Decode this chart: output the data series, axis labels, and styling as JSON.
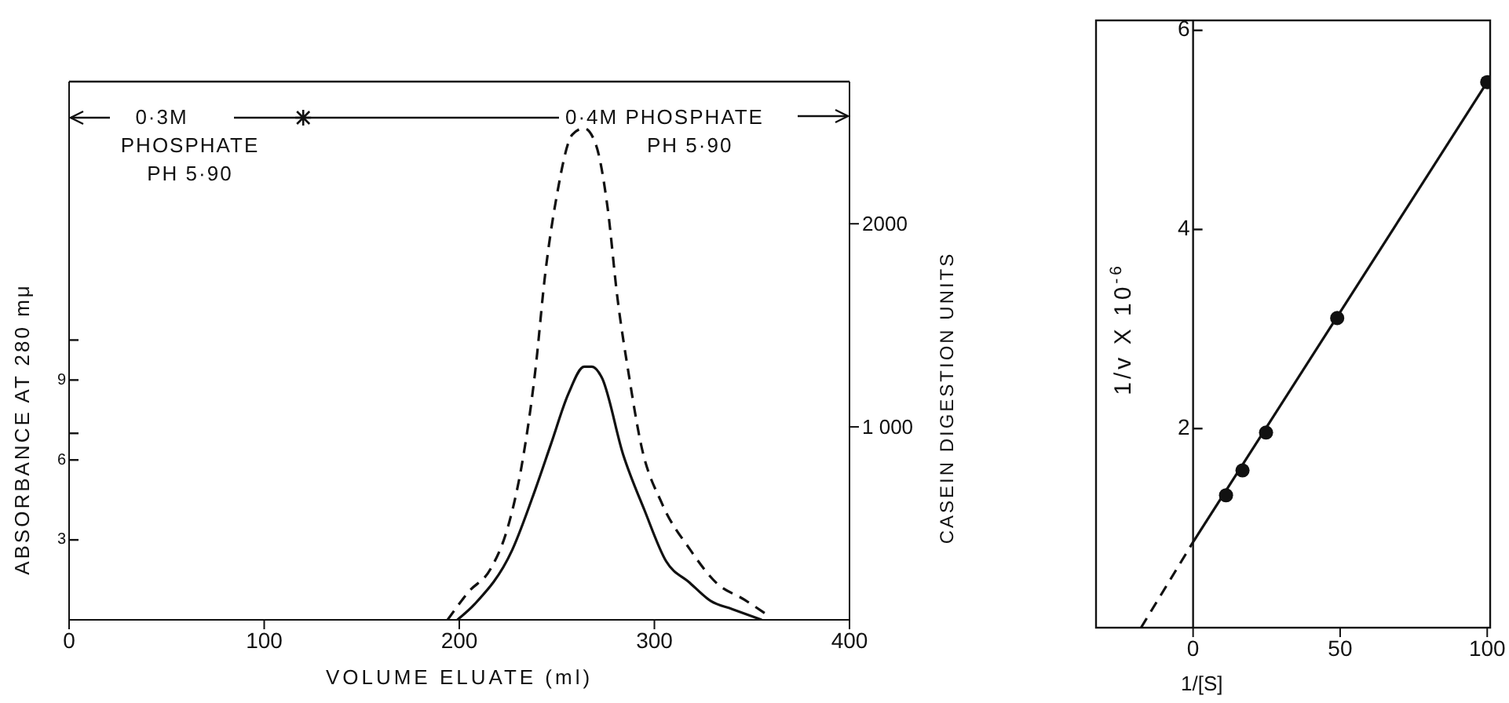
{
  "chart_data": [
    {
      "type": "line",
      "xlabel": "VOLUME ELUATE (ml)",
      "ylabel": "ABSORBANCE AT 280 mμ",
      "y2label": "CASEIN DIGESTION UNITS",
      "annotations": [
        "0·3M PHOSPHATE PH 5·90",
        "0·4M PHOSPHATE PH 5·90"
      ],
      "xlim": [
        0,
        400
      ],
      "xticks": [
        0,
        100,
        200,
        300,
        400
      ],
      "ylim": [
        0,
        20.2
      ],
      "yticks": [
        3,
        6,
        {
          "value": 7,
          "label": null
        },
        9,
        {
          "value": 10.5,
          "label": null
        }
      ],
      "y2lim": [
        50,
        2700
      ],
      "y2ticks": [
        {
          "value": 1000,
          "label": "1 000"
        },
        2000
      ],
      "series": [
        {
          "color": "#111111",
          "line_style": "solid",
          "x": [
            199,
            208,
            227,
            239,
            247,
            256,
            264,
            268,
            273,
            284,
            295,
            306,
            318,
            329,
            340,
            355
          ],
          "values": [
            0,
            0.6,
            2.6,
            4.9,
            6.6,
            8.5,
            9.5,
            9.5,
            9.1,
            6.2,
            4.1,
            2.2,
            1.4,
            0.7,
            0.4,
            0
          ]
        },
        {
          "color": "#111111",
          "line_style": "dashed",
          "axis": "y2",
          "x": [
            194,
            205,
            216,
            225,
            232,
            239,
            244,
            250,
            258,
            264,
            270,
            276,
            281,
            287,
            293,
            304,
            318,
            332,
            346,
            357
          ],
          "values": [
            50,
            190,
            300,
            510,
            810,
            1280,
            1750,
            2140,
            2440,
            2470,
            2390,
            2080,
            1640,
            1250,
            920,
            620,
            400,
            230,
            150,
            80
          ]
        }
      ]
    },
    {
      "type": "scatter",
      "xlabel": "1/[S]",
      "ylabel": "1/v X 10$^{-6}$",
      "xlim": [
        -33,
        101
      ],
      "xticks": [
        0,
        50,
        100
      ],
      "ylim": [
        0,
        6.1
      ],
      "yticks": [
        2,
        4,
        6
      ],
      "series": [
        {
          "marker": "circle",
          "color": "#111111",
          "x": [
            11.2,
            16.8,
            24.8,
            49,
            100
          ],
          "values": [
            1.33,
            1.58,
            1.96,
            3.11,
            5.48
          ]
        },
        {
          "type": "line",
          "color": "#111111",
          "line_style": "dashed",
          "x": [
            -17.7,
            0
          ],
          "values": [
            0,
            0.86
          ]
        },
        {
          "type": "line",
          "color": "#111111",
          "line_style": "solid",
          "x": [
            0,
            100
          ],
          "values": [
            0.86,
            5.48
          ]
        }
      ]
    }
  ]
}
